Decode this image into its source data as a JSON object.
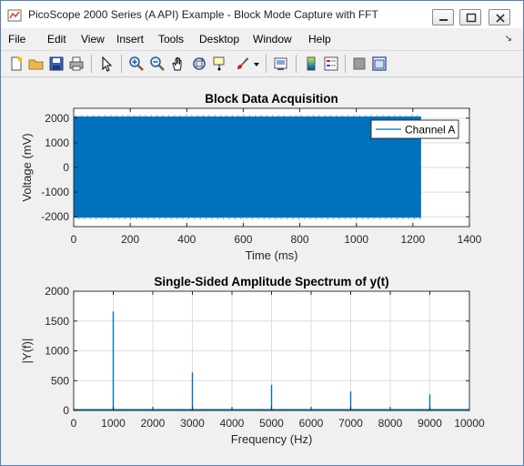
{
  "window": {
    "title": "PicoScope 2000 Series (A API) Example - Block Mode Capture with FFT",
    "icons": {
      "app": "matlab-figure-icon",
      "minimize": "minimize-icon",
      "maximize": "maximize-icon",
      "close": "close-icon"
    }
  },
  "menubar": {
    "items": [
      "File",
      "Edit",
      "View",
      "Insert",
      "Tools",
      "Desktop",
      "Window",
      "Help"
    ],
    "dock_icon": "dock-arrow-icon"
  },
  "toolbar": {
    "icons": [
      "new-figure-icon",
      "open-file-icon",
      "save-icon",
      "print-icon",
      "select-arrow-icon",
      "zoom-in-icon",
      "zoom-out-icon",
      "pan-hand-icon",
      "rotate-3d-icon",
      "data-cursor-icon",
      "brush-icon",
      "brush-dropdown-icon",
      "link-plot-icon",
      "colorbar-icon",
      "legend-icon",
      "hide-plot-tools-icon",
      "show-plot-tools-icon"
    ]
  },
  "chart_data": [
    {
      "type": "line",
      "title": "Block Data Acquisition",
      "xlabel": "Time (ms)",
      "ylabel": "Voltage (mV)",
      "xlim": [
        0,
        1400
      ],
      "ylim": [
        -2400,
        2400
      ],
      "xticks": [
        0,
        200,
        400,
        600,
        800,
        1000,
        1200,
        1400
      ],
      "yticks": [
        -2000,
        -1000,
        0,
        1000,
        2000
      ],
      "grid": true,
      "legend_position": "top-right",
      "series": [
        {
          "name": "Channel A",
          "color": "#0072bd",
          "x": [
            0,
            1229
          ],
          "y_max": 2070,
          "y_min": -2040,
          "description_of_fill": "dense oscillation between y_min and y_max"
        }
      ]
    },
    {
      "type": "line",
      "title": "Single-Sided Amplitude Spectrum of y(t)",
      "xlabel": "Frequency (Hz)",
      "ylabel": "|Y(f)|",
      "xlim": [
        0,
        10000
      ],
      "ylim": [
        0,
        2000
      ],
      "xticks": [
        0,
        1000,
        2000,
        3000,
        4000,
        5000,
        6000,
        7000,
        8000,
        9000,
        10000
      ],
      "yticks": [
        0,
        500,
        1000,
        1500,
        2000
      ],
      "grid": true,
      "series": [
        {
          "color": "#0072bd",
          "x": [
            1000,
            3000,
            5000,
            7000,
            9000
          ],
          "y": [
            1660,
            640,
            430,
            320,
            270
          ]
        }
      ]
    }
  ]
}
